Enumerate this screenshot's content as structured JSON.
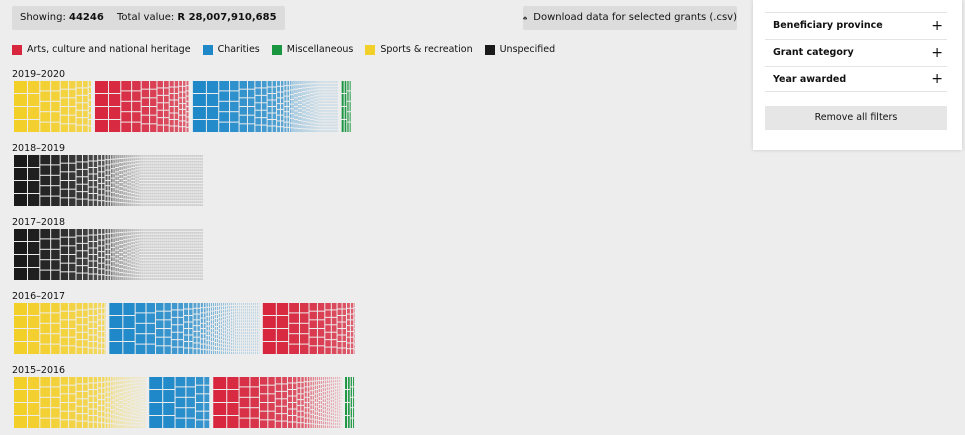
{
  "summary": {
    "showing_label": "Showing:",
    "showing_value": "44246",
    "total_label": "Total value:",
    "total_value": "R 28,007,910,685",
    "download_label": "Download data for selected grants (.csv)"
  },
  "legend": [
    {
      "label": "Arts, culture and national heritage",
      "color": "#d7263d"
    },
    {
      "label": "Charities",
      "color": "#1e88c9"
    },
    {
      "label": "Miscellaneous",
      "color": "#1a9641"
    },
    {
      "label": "Sports & recreation",
      "color": "#f3cf2a"
    },
    {
      "label": "Unspecified",
      "color": "#1a1a1a"
    }
  ],
  "years": [
    {
      "label": "2019–2020",
      "groups": [
        {
          "category": "Sports & recreation",
          "color": "#f3cf2a",
          "share": 0.23
        },
        {
          "category": "Arts, culture and national heritage",
          "color": "#d7263d",
          "share": 0.28
        },
        {
          "category": "Charities",
          "color": "#1e88c9",
          "share": 0.43
        },
        {
          "category": "Miscellaneous",
          "color": "#1a9641",
          "share": 0.03
        }
      ]
    },
    {
      "label": "2018–2019",
      "groups": [
        {
          "category": "Unspecified",
          "color": "#1a1a1a",
          "share": 1.0
        }
      ]
    },
    {
      "label": "2017–2018",
      "groups": [
        {
          "category": "Unspecified",
          "color": "#1a1a1a",
          "share": 1.0
        }
      ]
    },
    {
      "label": "2016–2017",
      "groups": [
        {
          "category": "Sports & recreation",
          "color": "#f3cf2a",
          "share": 0.27
        },
        {
          "category": "Charities",
          "color": "#1e88c9",
          "share": 0.44
        },
        {
          "category": "Arts, culture and national heritage",
          "color": "#d7263d",
          "share": 0.27
        }
      ]
    },
    {
      "label": "2015–2016",
      "groups": [
        {
          "category": "Sports & recreation",
          "color": "#f3cf2a",
          "share": 0.39
        },
        {
          "category": "Charities",
          "color": "#1e88c9",
          "share": 0.18
        },
        {
          "category": "Arts, culture and national heritage",
          "color": "#d7263d",
          "share": 0.38
        },
        {
          "category": "Miscellaneous",
          "color": "#1a9641",
          "share": 0.03
        }
      ]
    }
  ],
  "filters": [
    {
      "label": "Beneficiary province"
    },
    {
      "label": "Grant category"
    },
    {
      "label": "Year awarded"
    }
  ],
  "remove_filters_label": "Remove all filters"
}
